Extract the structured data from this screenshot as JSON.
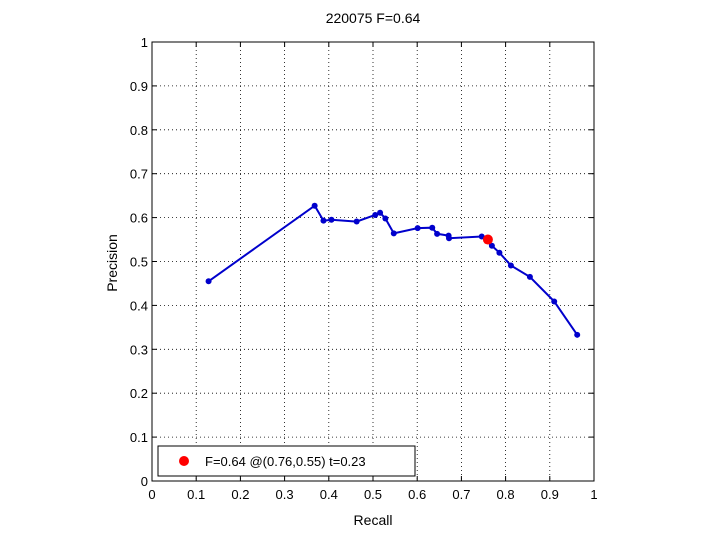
{
  "chart_data": {
    "type": "line",
    "title": "220075 F=0.64",
    "xlabel": "Recall",
    "ylabel": "Precision",
    "xlim": [
      0,
      1
    ],
    "ylim": [
      0,
      1
    ],
    "xticks": [
      "0",
      "0.1",
      "0.2",
      "0.3",
      "0.4",
      "0.5",
      "0.6",
      "0.7",
      "0.8",
      "0.9",
      "1"
    ],
    "yticks": [
      "0",
      "0.1",
      "0.2",
      "0.3",
      "0.4",
      "0.5",
      "0.6",
      "0.7",
      "0.8",
      "0.9",
      "1"
    ],
    "grid": true,
    "series": [
      {
        "color": "#0000cc",
        "x": [
          0.128,
          0.368,
          0.388,
          0.406,
          0.463,
          0.505,
          0.516,
          0.528,
          0.547,
          0.601,
          0.634,
          0.645,
          0.671,
          0.672,
          0.746,
          0.769,
          0.786,
          0.812,
          0.855,
          0.91,
          0.962
        ],
        "y": [
          0.455,
          0.627,
          0.593,
          0.595,
          0.591,
          0.606,
          0.611,
          0.598,
          0.564,
          0.576,
          0.577,
          0.563,
          0.559,
          0.553,
          0.557,
          0.536,
          0.52,
          0.491,
          0.465,
          0.409,
          0.333
        ]
      }
    ],
    "highlight": {
      "x": 0.76,
      "y": 0.55,
      "color": "#ff0000"
    },
    "legend": {
      "position": "bottom-left",
      "text": "F=0.64 @(0.76,0.55) t=0.23"
    }
  }
}
